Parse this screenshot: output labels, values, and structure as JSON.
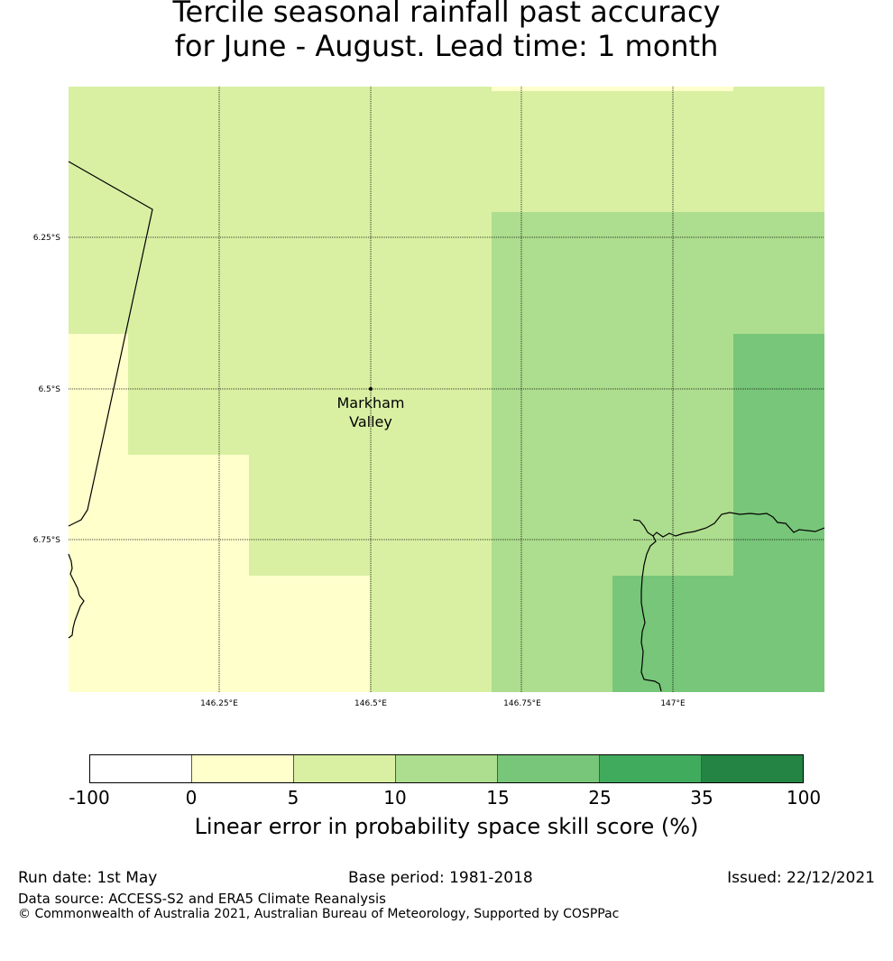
{
  "title": {
    "line1": "Tercile seasonal rainfall past accuracy",
    "line2": "for June - August. Lead time: 1 month"
  },
  "map": {
    "lon_labels": [
      "146.25°E",
      "146.5°E",
      "146.75°E",
      "147°E"
    ],
    "lat_labels": [
      "6.25°S",
      "6.5°S",
      "6.75°S"
    ],
    "place": {
      "line1": "Markham",
      "line2": "Valley"
    },
    "colors": {
      "class_0_5": "#ffffcc",
      "class_5_10": "#d9f0a3",
      "class_10_15": "#addd8e",
      "class_15_25": "#78c679",
      "coast": "#000000",
      "gridline": "#000000"
    }
  },
  "colorbar": {
    "ticks": [
      "-100",
      "0",
      "5",
      "10",
      "15",
      "25",
      "35",
      "100"
    ],
    "colors": [
      "#ffffff",
      "#ffffcc",
      "#d9f0a3",
      "#addd8e",
      "#78c679",
      "#41ab5d",
      "#238443"
    ],
    "label": "Linear error in probability space skill score (%)"
  },
  "footer": {
    "run_date": "Run date: 1st May",
    "base_period": "Base period: 1981-2018",
    "issued": "Issued: 22/12/2021",
    "data_source": "Data source: ACCESS-S2 and ERA5 Climate Reanalysis",
    "copyright": "© Commonwealth of Australia 2021, Australian Bureau of Meteorology, Supported by COSPPac"
  }
}
